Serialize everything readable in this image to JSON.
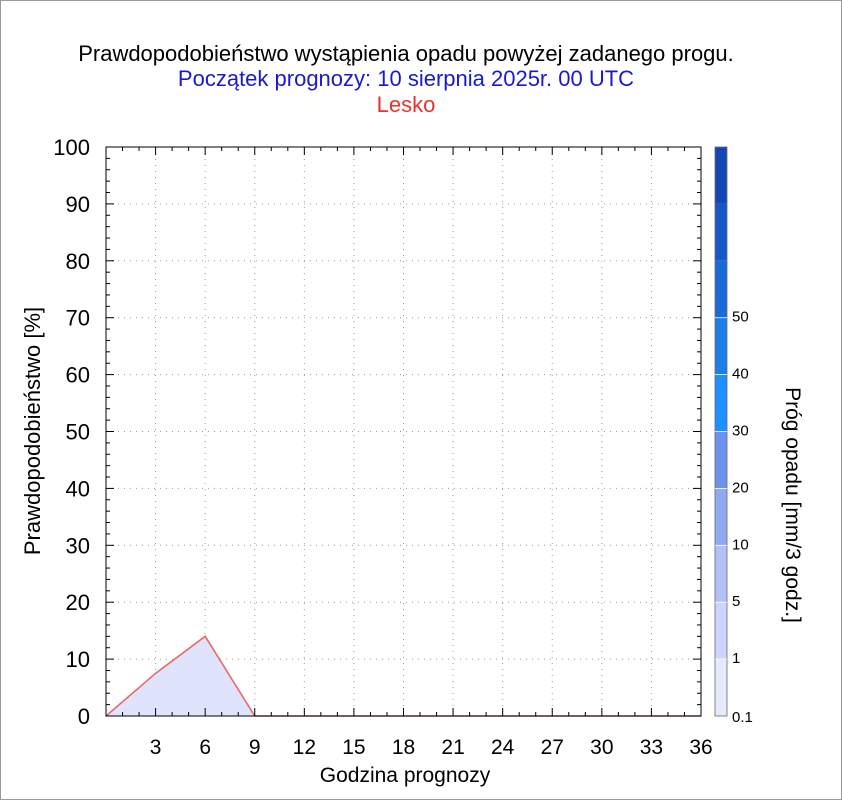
{
  "titles": {
    "main": "Prawdopodobieństwo wystąpienia opadu powyżej zadanego progu.",
    "forecast_start": "Początek prognozy: 10 sierpnia 2025r. 00 UTC",
    "location": "Lesko"
  },
  "colors": {
    "main_title": "#000000",
    "forecast_start": "#1a1acc",
    "location": "#e8322e",
    "series_fill": "#dfe3fb",
    "series_line": "#e66a6a"
  },
  "chart_data": {
    "type": "area",
    "title": "Prawdopodobieństwo wystąpienia opadu powyżej zadanego progu.",
    "xlabel": "Godzina prognozy",
    "ylabel": "Prawdopodobieństwo [%]",
    "xlim": [
      0,
      36
    ],
    "ylim": [
      0,
      100
    ],
    "x_ticks": [
      3,
      6,
      9,
      12,
      15,
      18,
      21,
      24,
      27,
      30,
      33,
      36
    ],
    "y_ticks": [
      0,
      10,
      20,
      30,
      40,
      50,
      60,
      70,
      80,
      90,
      100
    ],
    "grid": true,
    "series": [
      {
        "threshold": "0.1",
        "x": [
          0,
          3,
          6,
          9,
          12,
          15,
          18,
          21,
          24,
          27,
          30,
          33,
          36
        ],
        "y": [
          0,
          7.5,
          14,
          0,
          0,
          0,
          0,
          0,
          0,
          0,
          0,
          0,
          0
        ]
      }
    ],
    "colorbar": {
      "label": "Próg opadu [mm/3 godz.]",
      "levels": [
        "0.1",
        "1",
        "5",
        "10",
        "20",
        "30",
        "40",
        "50"
      ],
      "colors": [
        "#e6eafb",
        "#cdd6fa",
        "#b2c2f7",
        "#8faaf0",
        "#6b93ec",
        "#1e90ff",
        "#1c7fe8",
        "#1a6ad8",
        "#1758c8",
        "#1446b4"
      ]
    }
  }
}
